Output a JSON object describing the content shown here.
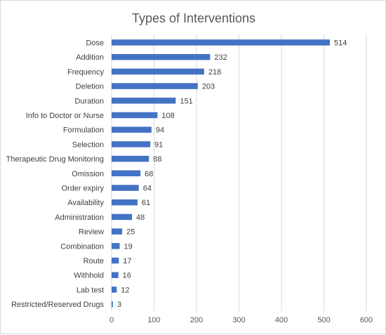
{
  "chart_data": {
    "type": "bar",
    "orientation": "horizontal",
    "title": "Types of Interventions",
    "xlabel": "",
    "ylabel": "",
    "xlim": [
      0,
      600
    ],
    "x_ticks": [
      0,
      100,
      200,
      300,
      400,
      500,
      600
    ],
    "grid": true,
    "legend": "none",
    "bar_color": "#4472c4",
    "categories": [
      "Dose",
      "Addition",
      "Frequency",
      "Deletion",
      "Duration",
      "Info to Doctor or Nurse",
      "Formulation",
      "Selection",
      "Therapeutic Drug Monitoring",
      "Omission",
      "Order expiry",
      "Availability",
      "Administration",
      "Review",
      "Combination",
      "Route",
      "Withhold",
      "Lab test",
      "Restricted/Reserved Drugs"
    ],
    "values": [
      514,
      232,
      218,
      203,
      151,
      108,
      94,
      91,
      88,
      68,
      64,
      61,
      48,
      25,
      19,
      17,
      16,
      12,
      3
    ]
  }
}
